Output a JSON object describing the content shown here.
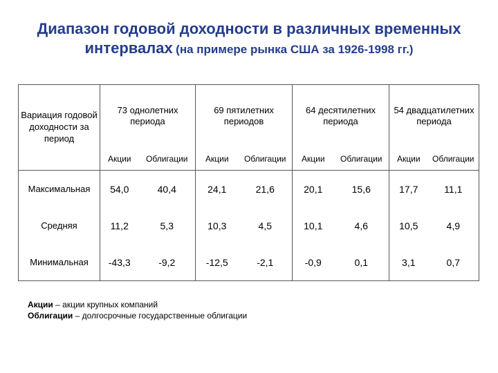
{
  "title": {
    "line1": "Диапазон годовой доходности в различных временных",
    "line2_main": "интервалах",
    "line2_sub": "(на примере рынка США за 1926-1998 гг.)"
  },
  "table": {
    "corner_label": "Вариация годовой доходности за период",
    "groups": [
      "73 однолетних периода",
      "69 пятилетних периодов",
      "64 десятилетних периода",
      "54 двадцатилетних периода"
    ],
    "sub_headers": [
      "Акции",
      "Облигации",
      "Акции",
      "Облигации",
      "Акции",
      "Облигации",
      "Акции",
      "Облигации"
    ],
    "rows": [
      {
        "label": "Максимальная",
        "values": [
          "54,0",
          "40,4",
          "24,1",
          "21,6",
          "20,1",
          "15,6",
          "17,7",
          "11,1"
        ]
      },
      {
        "label": "Средняя",
        "values": [
          "11,2",
          "5,3",
          "10,3",
          "4,5",
          "10,1",
          "4,6",
          "10,5",
          "4,9"
        ]
      },
      {
        "label": "Минимальная",
        "values": [
          "-43,3",
          "-9,2",
          "-12,5",
          "-2,1",
          "-0,9",
          "0,1",
          "3,1",
          "0,7"
        ]
      }
    ]
  },
  "notes": [
    {
      "term": "Акции",
      "text": " – акции крупных компаний"
    },
    {
      "term": "Облигации",
      "text": " – долгосрочные государственные облигации"
    }
  ]
}
